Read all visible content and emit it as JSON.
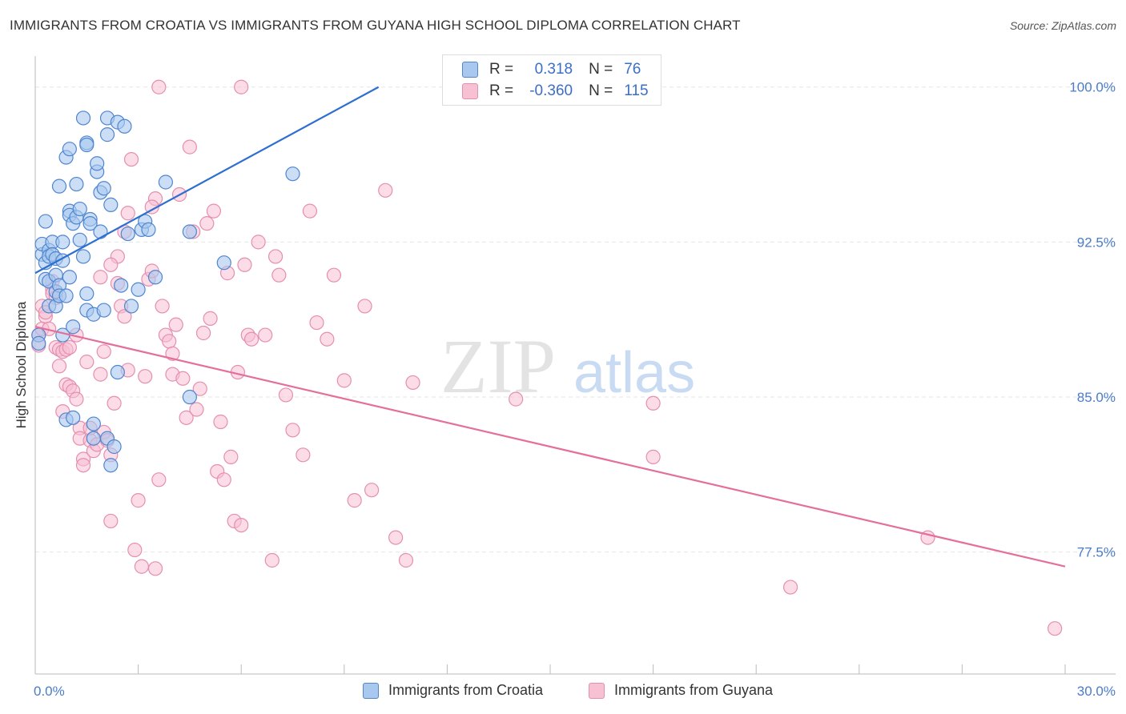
{
  "header": {
    "title": "IMMIGRANTS FROM CROATIA VS IMMIGRANTS FROM GUYANA HIGH SCHOOL DIPLOMA CORRELATION CHART",
    "source": "Source: ZipAtlas.com"
  },
  "watermark": {
    "zip": "ZIP",
    "atlas": "atlas"
  },
  "legend": {
    "rows": [
      {
        "r_label": "R =",
        "r_value": "0.318",
        "n_label": "N =",
        "n_value": "76"
      },
      {
        "r_label": "R =",
        "r_value": "-0.360",
        "n_label": "N =",
        "n_value": "115"
      }
    ]
  },
  "bottom_legend": {
    "croatia": "Immigrants from Croatia",
    "guyana": "Immigrants from Guyana"
  },
  "colors": {
    "croatia_fill": "#a9c8ef",
    "croatia_stroke": "#4f86d0",
    "croatia_line": "#2d6fd1",
    "guyana_fill": "#f7c0d3",
    "guyana_stroke": "#e58fb0",
    "guyana_line": "#e46f9b",
    "tick_text": "#4a7cc9",
    "grid": "#e6e6e6"
  },
  "chart_data": {
    "type": "scatter",
    "title": "IMMIGRANTS FROM CROATIA VS IMMIGRANTS FROM GUYANA HIGH SCHOOL DIPLOMA CORRELATION CHART",
    "xlabel": "",
    "ylabel": "High School Diploma",
    "xlim": [
      0,
      30
    ],
    "ylim": [
      71.6,
      101.5
    ],
    "x_tick_labels": [
      "0.0%",
      "30.0%"
    ],
    "y_ticks": [
      77.5,
      85.0,
      92.5,
      100.0
    ],
    "y_tick_labels": [
      "77.5%",
      "85.0%",
      "92.5%",
      "100.0%"
    ],
    "grid": true,
    "legend_position": "top-center",
    "series": [
      {
        "name": "Immigrants from Croatia",
        "r": 0.318,
        "n": 76,
        "trend": {
          "x": [
            0.0,
            10.0
          ],
          "y": [
            91.0,
            100.0
          ]
        },
        "points": [
          [
            0.1,
            88.0
          ],
          [
            0.1,
            87.6
          ],
          [
            0.2,
            91.9
          ],
          [
            0.2,
            92.4
          ],
          [
            0.3,
            93.5
          ],
          [
            0.3,
            91.5
          ],
          [
            0.3,
            90.7
          ],
          [
            0.4,
            92.1
          ],
          [
            0.4,
            91.8
          ],
          [
            0.4,
            90.6
          ],
          [
            0.4,
            89.4
          ],
          [
            0.5,
            92.5
          ],
          [
            0.5,
            91.9
          ],
          [
            0.6,
            91.7
          ],
          [
            0.6,
            90.9
          ],
          [
            0.6,
            90.1
          ],
          [
            0.6,
            89.4
          ],
          [
            0.7,
            90.4
          ],
          [
            0.7,
            89.9
          ],
          [
            0.7,
            95.2
          ],
          [
            0.8,
            91.6
          ],
          [
            0.8,
            92.5
          ],
          [
            0.8,
            88.0
          ],
          [
            0.9,
            89.9
          ],
          [
            0.9,
            96.6
          ],
          [
            0.9,
            83.9
          ],
          [
            1.0,
            97.0
          ],
          [
            1.0,
            94.0
          ],
          [
            1.0,
            93.8
          ],
          [
            1.0,
            90.8
          ],
          [
            1.1,
            93.4
          ],
          [
            1.1,
            88.4
          ],
          [
            1.1,
            84.0
          ],
          [
            1.2,
            95.3
          ],
          [
            1.2,
            93.7
          ],
          [
            1.3,
            94.1
          ],
          [
            1.3,
            92.6
          ],
          [
            1.4,
            98.5
          ],
          [
            1.4,
            91.8
          ],
          [
            1.5,
            97.3
          ],
          [
            1.5,
            97.2
          ],
          [
            1.5,
            90.0
          ],
          [
            1.5,
            89.2
          ],
          [
            1.6,
            93.6
          ],
          [
            1.6,
            93.4
          ],
          [
            1.7,
            89.0
          ],
          [
            1.7,
            83.7
          ],
          [
            1.7,
            83.0
          ],
          [
            1.8,
            95.9
          ],
          [
            1.8,
            96.3
          ],
          [
            1.9,
            93.0
          ],
          [
            1.9,
            94.9
          ],
          [
            2.0,
            95.1
          ],
          [
            2.0,
            89.2
          ],
          [
            2.1,
            97.7
          ],
          [
            2.1,
            98.5
          ],
          [
            2.1,
            83.0
          ],
          [
            2.2,
            94.3
          ],
          [
            2.2,
            81.7
          ],
          [
            2.3,
            82.6
          ],
          [
            2.4,
            98.3
          ],
          [
            2.4,
            86.2
          ],
          [
            2.5,
            90.4
          ],
          [
            2.6,
            98.1
          ],
          [
            2.7,
            92.9
          ],
          [
            2.8,
            89.4
          ],
          [
            3.0,
            90.2
          ],
          [
            3.1,
            93.1
          ],
          [
            3.2,
            93.5
          ],
          [
            3.3,
            93.1
          ],
          [
            3.5,
            90.8
          ],
          [
            3.8,
            95.4
          ],
          [
            4.5,
            93.0
          ],
          [
            5.5,
            91.5
          ],
          [
            7.5,
            95.8
          ],
          [
            4.5,
            85.0
          ]
        ]
      },
      {
        "name": "Immigrants from Guyana",
        "r": -0.36,
        "n": 115,
        "trend": {
          "x": [
            0.0,
            30.0
          ],
          "y": [
            88.4,
            76.8
          ]
        },
        "points": [
          [
            0.1,
            87.5
          ],
          [
            0.1,
            88.0
          ],
          [
            0.2,
            89.4
          ],
          [
            0.2,
            88.3
          ],
          [
            0.3,
            88.9
          ],
          [
            0.3,
            89.1
          ],
          [
            0.4,
            88.3
          ],
          [
            0.5,
            90.2
          ],
          [
            0.5,
            90.0
          ],
          [
            0.6,
            89.8
          ],
          [
            0.6,
            87.4
          ],
          [
            0.7,
            87.3
          ],
          [
            0.7,
            86.5
          ],
          [
            0.8,
            84.3
          ],
          [
            0.8,
            87.2
          ],
          [
            0.9,
            87.3
          ],
          [
            0.9,
            85.6
          ],
          [
            1.0,
            87.4
          ],
          [
            1.0,
            85.5
          ],
          [
            1.1,
            85.3
          ],
          [
            1.2,
            84.9
          ],
          [
            1.3,
            83.5
          ],
          [
            1.3,
            83.0
          ],
          [
            1.4,
            82.0
          ],
          [
            1.4,
            81.7
          ],
          [
            1.5,
            86.7
          ],
          [
            1.6,
            82.9
          ],
          [
            1.6,
            83.5
          ],
          [
            1.7,
            82.4
          ],
          [
            1.8,
            82.7
          ],
          [
            1.9,
            86.1
          ],
          [
            2.0,
            87.2
          ],
          [
            2.0,
            83.3
          ],
          [
            2.1,
            82.9
          ],
          [
            2.2,
            82.2
          ],
          [
            2.2,
            79.0
          ],
          [
            2.3,
            84.7
          ],
          [
            2.4,
            91.8
          ],
          [
            2.4,
            90.5
          ],
          [
            2.5,
            89.4
          ],
          [
            2.6,
            88.9
          ],
          [
            2.6,
            93.0
          ],
          [
            2.7,
            86.3
          ],
          [
            2.8,
            96.5
          ],
          [
            2.9,
            77.6
          ],
          [
            3.0,
            80.0
          ],
          [
            3.1,
            76.8
          ],
          [
            3.2,
            86.0
          ],
          [
            3.3,
            90.7
          ],
          [
            3.4,
            91.1
          ],
          [
            3.5,
            94.6
          ],
          [
            3.5,
            76.7
          ],
          [
            3.6,
            81.0
          ],
          [
            3.7,
            89.4
          ],
          [
            3.8,
            88.0
          ],
          [
            3.9,
            87.7
          ],
          [
            4.0,
            86.1
          ],
          [
            4.1,
            88.5
          ],
          [
            4.2,
            94.8
          ],
          [
            4.3,
            85.9
          ],
          [
            4.4,
            84.0
          ],
          [
            4.5,
            97.1
          ],
          [
            4.6,
            93.0
          ],
          [
            4.7,
            84.4
          ],
          [
            4.8,
            85.4
          ],
          [
            4.9,
            88.1
          ],
          [
            5.0,
            93.4
          ],
          [
            5.1,
            88.8
          ],
          [
            5.2,
            94.0
          ],
          [
            5.3,
            81.4
          ],
          [
            5.4,
            83.8
          ],
          [
            5.5,
            81.0
          ],
          [
            5.6,
            91.0
          ],
          [
            5.7,
            82.1
          ],
          [
            5.8,
            79.0
          ],
          [
            5.9,
            86.2
          ],
          [
            6.0,
            78.8
          ],
          [
            6.1,
            91.4
          ],
          [
            6.2,
            88.0
          ],
          [
            6.3,
            87.8
          ],
          [
            6.5,
            92.5
          ],
          [
            6.7,
            88.0
          ],
          [
            6.9,
            77.1
          ],
          [
            7.0,
            91.8
          ],
          [
            7.1,
            90.9
          ],
          [
            7.3,
            85.1
          ],
          [
            7.5,
            83.4
          ],
          [
            7.8,
            82.2
          ],
          [
            8.0,
            94.0
          ],
          [
            8.2,
            88.6
          ],
          [
            8.5,
            87.8
          ],
          [
            8.7,
            90.9
          ],
          [
            9.0,
            85.8
          ],
          [
            9.3,
            80.0
          ],
          [
            9.6,
            89.4
          ],
          [
            9.8,
            80.5
          ],
          [
            10.2,
            95.0
          ],
          [
            10.5,
            78.2
          ],
          [
            10.8,
            77.1
          ],
          [
            11.0,
            85.7
          ],
          [
            14.0,
            84.9
          ],
          [
            18.0,
            82.1
          ],
          [
            18.0,
            84.7
          ],
          [
            22.0,
            75.8
          ],
          [
            26.0,
            78.2
          ],
          [
            29.7,
            73.8
          ],
          [
            3.6,
            100.0
          ],
          [
            6.0,
            100.0
          ],
          [
            2.7,
            93.9
          ],
          [
            1.9,
            90.8
          ],
          [
            3.4,
            94.2
          ],
          [
            0.5,
            90.6
          ],
          [
            1.2,
            88.0
          ],
          [
            2.2,
            91.4
          ],
          [
            4.0,
            87.1
          ]
        ]
      }
    ]
  }
}
